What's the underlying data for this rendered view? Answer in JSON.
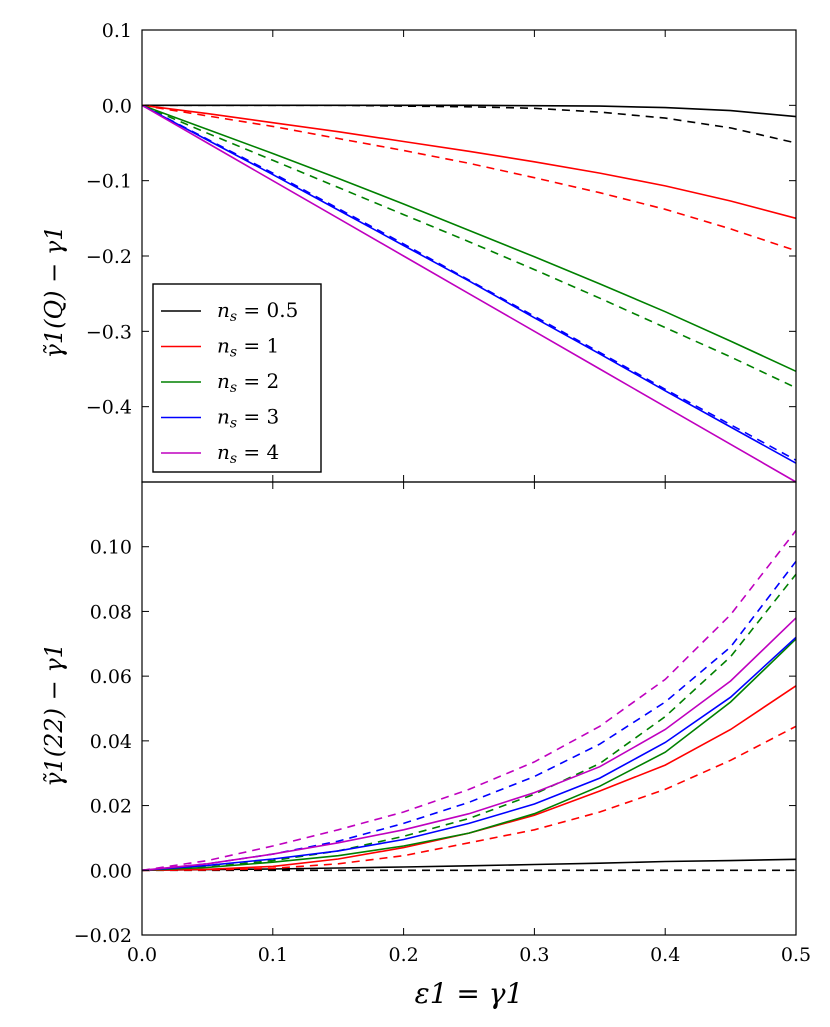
{
  "chart_data": [
    {
      "type": "line",
      "panel": "top",
      "ylabel": "γ̃1(Q) − γ1",
      "xlim": [
        0.0,
        0.5
      ],
      "ylim": [
        -0.5,
        0.1
      ],
      "yticks": [
        0.1,
        0.0,
        -0.1,
        -0.2,
        -0.3,
        -0.4
      ],
      "ytick_labels": [
        "0.1",
        "0.0",
        "−0.1",
        "−0.2",
        "−0.3",
        "−0.4"
      ],
      "legend": {
        "placement": "center-left",
        "entries": [
          {
            "label": "n",
            "sub": "s",
            "value": " = 0.5",
            "color": "#000000"
          },
          {
            "label": "n",
            "sub": "s",
            "value": " = 1",
            "color": "#ff0000"
          },
          {
            "label": "n",
            "sub": "s",
            "value": " = 2",
            "color": "#008000"
          },
          {
            "label": "n",
            "sub": "s",
            "value": " = 3",
            "color": "#0000ff"
          },
          {
            "label": "n",
            "sub": "s",
            "value": " = 4",
            "color": "#bf00bf"
          }
        ]
      },
      "x": [
        0.0,
        0.05,
        0.1,
        0.15,
        0.2,
        0.25,
        0.3,
        0.35,
        0.4,
        0.45,
        0.5
      ],
      "series": [
        {
          "name": "ns = 0.5",
          "style": "solid",
          "color": "#000000",
          "values": [
            0.0,
            0.0,
            0.0,
            0.0,
            0.0,
            0.0,
            -0.0005,
            -0.001,
            -0.003,
            -0.007,
            -0.015
          ]
        },
        {
          "name": "ns = 0.5",
          "style": "dashed",
          "color": "#000000",
          "values": [
            0.0,
            0.0,
            0.0,
            0.0,
            -0.001,
            -0.002,
            -0.004,
            -0.009,
            -0.017,
            -0.03,
            -0.05
          ]
        },
        {
          "name": "ns = 1",
          "style": "solid",
          "color": "#ff0000",
          "values": [
            0.0,
            -0.011,
            -0.023,
            -0.035,
            -0.048,
            -0.061,
            -0.075,
            -0.09,
            -0.107,
            -0.127,
            -0.15
          ]
        },
        {
          "name": "ns = 1",
          "style": "dashed",
          "color": "#ff0000",
          "values": [
            0.0,
            -0.014,
            -0.028,
            -0.044,
            -0.06,
            -0.077,
            -0.096,
            -0.116,
            -0.138,
            -0.164,
            -0.193
          ]
        },
        {
          "name": "ns = 2",
          "style": "solid",
          "color": "#008000",
          "values": [
            0.0,
            -0.032,
            -0.064,
            -0.097,
            -0.131,
            -0.166,
            -0.201,
            -0.237,
            -0.274,
            -0.313,
            -0.353
          ]
        },
        {
          "name": "ns = 2",
          "style": "dashed",
          "color": "#008000",
          "values": [
            0.0,
            -0.037,
            -0.073,
            -0.109,
            -0.145,
            -0.181,
            -0.218,
            -0.256,
            -0.295,
            -0.334,
            -0.375
          ]
        },
        {
          "name": "ns = 3",
          "style": "solid",
          "color": "#0000ff",
          "values": [
            0.0,
            -0.046,
            -0.092,
            -0.139,
            -0.186,
            -0.233,
            -0.282,
            -0.33,
            -0.379,
            -0.427,
            -0.475
          ]
        },
        {
          "name": "ns = 3",
          "style": "dashed",
          "color": "#0000ff",
          "values": [
            0.0,
            -0.045,
            -0.09,
            -0.137,
            -0.184,
            -0.232,
            -0.28,
            -0.328,
            -0.377,
            -0.424,
            -0.471
          ]
        },
        {
          "name": "ns = 4",
          "style": "solid",
          "color": "#bf00bf",
          "values": [
            0.0,
            -0.05,
            -0.1,
            -0.15,
            -0.2,
            -0.25,
            -0.3,
            -0.35,
            -0.4,
            -0.45,
            -0.5
          ]
        }
      ]
    },
    {
      "type": "line",
      "panel": "bottom",
      "xlabel": "ε1 = γ1",
      "ylabel": "γ̃1(22) − γ1",
      "xlim": [
        0.0,
        0.5
      ],
      "ylim": [
        -0.02,
        0.12
      ],
      "xticks": [
        0.0,
        0.1,
        0.2,
        0.3,
        0.4,
        0.5
      ],
      "xtick_labels": [
        "0.0",
        "0.1",
        "0.2",
        "0.3",
        "0.4",
        "0.5"
      ],
      "yticks": [
        0.1,
        0.08,
        0.06,
        0.04,
        0.02,
        0.0,
        -0.02
      ],
      "ytick_labels": [
        "0.10",
        "0.08",
        "0.06",
        "0.04",
        "0.02",
        "0.00",
        "−0.02"
      ],
      "x": [
        0.0,
        0.05,
        0.1,
        0.15,
        0.2,
        0.25,
        0.3,
        0.35,
        0.4,
        0.45,
        0.5
      ],
      "series": [
        {
          "name": "ns = 0.5",
          "style": "solid",
          "color": "#000000",
          "values": [
            0.0,
            0.0002,
            0.0004,
            0.0007,
            0.001,
            0.0014,
            0.0018,
            0.0022,
            0.0027,
            0.003,
            0.0034
          ]
        },
        {
          "name": "ns = 0.5",
          "style": "dashed",
          "color": "#000000",
          "values": [
            0.0,
            0.0,
            0.0,
            0.0,
            0.0,
            0.0,
            0.0,
            0.0,
            0.0,
            0.0,
            0.0
          ]
        },
        {
          "name": "ns = 1",
          "style": "solid",
          "color": "#ff0000",
          "values": [
            0.0,
            0.0003,
            0.0012,
            0.0035,
            0.007,
            0.0115,
            0.017,
            0.0245,
            0.0325,
            0.0435,
            0.057
          ]
        },
        {
          "name": "ns = 1",
          "style": "dashed",
          "color": "#ff0000",
          "values": [
            0.0,
            0.0001,
            0.0006,
            0.002,
            0.0045,
            0.0085,
            0.0125,
            0.018,
            0.025,
            0.034,
            0.0445
          ]
        },
        {
          "name": "ns = 2",
          "style": "solid",
          "color": "#008000",
          "values": [
            0.0,
            0.0009,
            0.0025,
            0.0045,
            0.0075,
            0.0115,
            0.0175,
            0.026,
            0.0365,
            0.052,
            0.0715
          ]
        },
        {
          "name": "ns = 2",
          "style": "dashed",
          "color": "#008000",
          "values": [
            0.0,
            0.001,
            0.003,
            0.006,
            0.0105,
            0.016,
            0.0235,
            0.033,
            0.0475,
            0.066,
            0.0915
          ]
        },
        {
          "name": "ns = 3",
          "style": "solid",
          "color": "#0000ff",
          "values": [
            0.0,
            0.0015,
            0.0035,
            0.006,
            0.0095,
            0.0145,
            0.0205,
            0.0285,
            0.0395,
            0.0535,
            0.072
          ]
        },
        {
          "name": "ns = 3",
          "style": "dashed",
          "color": "#0000ff",
          "values": [
            0.0,
            0.002,
            0.005,
            0.009,
            0.0145,
            0.021,
            0.029,
            0.039,
            0.052,
            0.069,
            0.0955
          ]
        },
        {
          "name": "ns = 4",
          "style": "solid",
          "color": "#bf00bf",
          "values": [
            0.0,
            0.002,
            0.005,
            0.0085,
            0.0125,
            0.0175,
            0.024,
            0.032,
            0.0435,
            0.0585,
            0.078
          ]
        },
        {
          "name": "ns = 4",
          "style": "dashed",
          "color": "#bf00bf",
          "values": [
            0.0,
            0.003,
            0.0075,
            0.0125,
            0.018,
            0.025,
            0.0335,
            0.0445,
            0.059,
            0.079,
            0.105
          ]
        }
      ]
    }
  ]
}
